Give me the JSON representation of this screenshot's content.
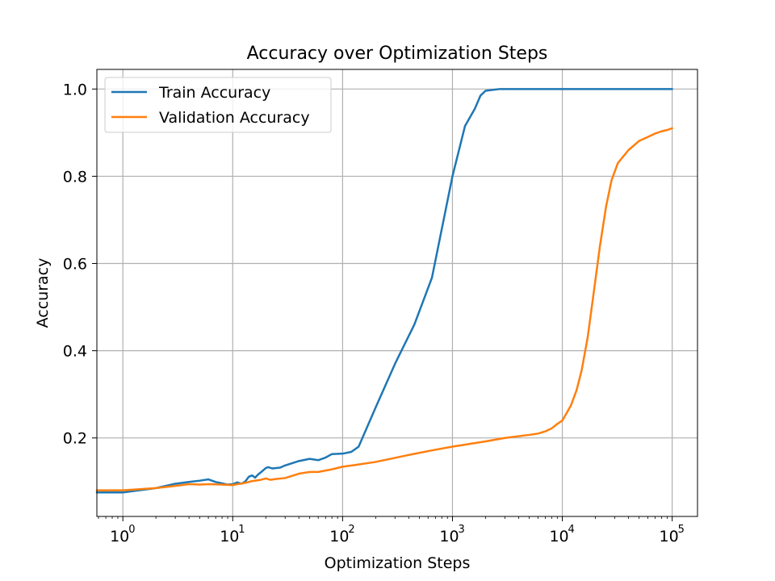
{
  "chart_data": {
    "type": "line",
    "title": "Accuracy over Optimization Steps",
    "xlabel": "Optimization Steps",
    "ylabel": "Accuracy",
    "x_scale": "log",
    "xlim": [
      0.58,
      170000
    ],
    "ylim": [
      0.02,
      1.045
    ],
    "grid": true,
    "legend_position": "upper-left",
    "x_ticks": [
      {
        "value": 1,
        "base": "10",
        "exp": "0"
      },
      {
        "value": 10,
        "base": "10",
        "exp": "1"
      },
      {
        "value": 100,
        "base": "10",
        "exp": "2"
      },
      {
        "value": 1000,
        "base": "10",
        "exp": "3"
      },
      {
        "value": 10000,
        "base": "10",
        "exp": "4"
      },
      {
        "value": 100000,
        "base": "10",
        "exp": "5"
      }
    ],
    "y_ticks": [
      {
        "value": 0.2,
        "label": "0.2"
      },
      {
        "value": 0.4,
        "label": "0.4"
      },
      {
        "value": 0.6,
        "label": "0.6"
      },
      {
        "value": 0.8,
        "label": "0.8"
      },
      {
        "value": 1.0,
        "label": "1.0"
      }
    ],
    "series": [
      {
        "name": "Train Accuracy",
        "color": "#1f77b4",
        "points": [
          [
            0.58,
            0.075
          ],
          [
            1,
            0.075
          ],
          [
            2,
            0.085
          ],
          [
            3,
            0.095
          ],
          [
            4,
            0.099
          ],
          [
            5,
            0.102
          ],
          [
            6,
            0.105
          ],
          [
            7,
            0.099
          ],
          [
            8,
            0.096
          ],
          [
            9,
            0.093
          ],
          [
            10,
            0.094
          ],
          [
            11,
            0.098
          ],
          [
            12,
            0.095
          ],
          [
            13,
            0.1
          ],
          [
            14,
            0.111
          ],
          [
            15,
            0.114
          ],
          [
            16,
            0.109
          ],
          [
            17,
            0.116
          ],
          [
            18,
            0.121
          ],
          [
            20,
            0.131
          ],
          [
            21,
            0.133
          ],
          [
            23,
            0.13
          ],
          [
            27,
            0.132
          ],
          [
            30,
            0.137
          ],
          [
            40,
            0.147
          ],
          [
            50,
            0.152
          ],
          [
            60,
            0.149
          ],
          [
            70,
            0.155
          ],
          [
            80,
            0.163
          ],
          [
            100,
            0.164
          ],
          [
            120,
            0.168
          ],
          [
            140,
            0.18
          ],
          [
            200,
            0.27
          ],
          [
            300,
            0.37
          ],
          [
            450,
            0.46
          ],
          [
            650,
            0.567
          ],
          [
            1000,
            0.8
          ],
          [
            1300,
            0.915
          ],
          [
            1600,
            0.955
          ],
          [
            1800,
            0.985
          ],
          [
            2000,
            0.996
          ],
          [
            2700,
            1.0
          ],
          [
            5000,
            1.0
          ],
          [
            100000,
            1.0
          ]
        ]
      },
      {
        "name": "Validation Accuracy",
        "color": "#ff7f0e",
        "points": [
          [
            0.58,
            0.08
          ],
          [
            1,
            0.08
          ],
          [
            2,
            0.085
          ],
          [
            3,
            0.09
          ],
          [
            4,
            0.094
          ],
          [
            5,
            0.093
          ],
          [
            6,
            0.094
          ],
          [
            8,
            0.093
          ],
          [
            10,
            0.092
          ],
          [
            13,
            0.097
          ],
          [
            15,
            0.101
          ],
          [
            18,
            0.104
          ],
          [
            20,
            0.107
          ],
          [
            22,
            0.104
          ],
          [
            25,
            0.106
          ],
          [
            30,
            0.108
          ],
          [
            40,
            0.118
          ],
          [
            50,
            0.122
          ],
          [
            60,
            0.122
          ],
          [
            80,
            0.128
          ],
          [
            100,
            0.134
          ],
          [
            130,
            0.138
          ],
          [
            200,
            0.145
          ],
          [
            400,
            0.161
          ],
          [
            700,
            0.173
          ],
          [
            1000,
            0.18
          ],
          [
            2000,
            0.192
          ],
          [
            3000,
            0.2
          ],
          [
            5000,
            0.207
          ],
          [
            6000,
            0.21
          ],
          [
            7000,
            0.215
          ],
          [
            8000,
            0.222
          ],
          [
            9000,
            0.232
          ],
          [
            10000,
            0.24
          ],
          [
            11000,
            0.258
          ],
          [
            12000,
            0.275
          ],
          [
            13500,
            0.31
          ],
          [
            15000,
            0.355
          ],
          [
            17000,
            0.43
          ],
          [
            19000,
            0.52
          ],
          [
            22000,
            0.64
          ],
          [
            25000,
            0.73
          ],
          [
            28000,
            0.79
          ],
          [
            32000,
            0.83
          ],
          [
            40000,
            0.86
          ],
          [
            50000,
            0.881
          ],
          [
            60000,
            0.89
          ],
          [
            70000,
            0.898
          ],
          [
            80000,
            0.903
          ],
          [
            90000,
            0.906
          ],
          [
            100000,
            0.91
          ]
        ]
      }
    ]
  }
}
